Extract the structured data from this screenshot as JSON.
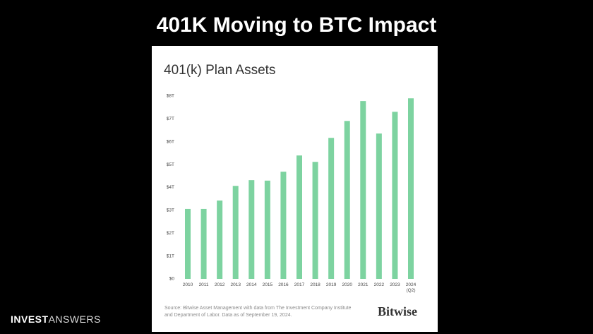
{
  "slide_title": "401K Moving to BTC Impact",
  "chart_data": {
    "type": "bar",
    "title": "401(k) Plan Assets",
    "categories": [
      "2010",
      "2011",
      "2012",
      "2013",
      "2014",
      "2015",
      "2016",
      "2017",
      "2018",
      "2019",
      "2020",
      "2021",
      "2022",
      "2023",
      "2024\n(Q2)"
    ],
    "values": [
      3.06,
      3.06,
      3.43,
      4.07,
      4.32,
      4.3,
      4.69,
      5.4,
      5.12,
      6.17,
      6.91,
      7.78,
      6.36,
      7.31,
      7.9
    ],
    "color": "#7dd3a0",
    "ylim": [
      0,
      8
    ],
    "yticks": [
      {
        "value": 0,
        "label": "$0"
      },
      {
        "value": 1,
        "label": "$1T"
      },
      {
        "value": 2,
        "label": "$2T"
      },
      {
        "value": 3,
        "label": "$3T"
      },
      {
        "value": 4,
        "label": "$4T"
      },
      {
        "value": 5,
        "label": "$5T"
      },
      {
        "value": 6,
        "label": "$6T"
      },
      {
        "value": 7,
        "label": "$7T"
      },
      {
        "value": 8,
        "label": "$8T"
      }
    ],
    "grid": false,
    "source": "Source: Bitwise Asset Management with data from The Investment Company Institute and Department of Labor. Data as of September 19, 2024.",
    "logo": "Bitwise"
  },
  "footer": {
    "bold": "INVEST",
    "light": "ANSWERS"
  }
}
